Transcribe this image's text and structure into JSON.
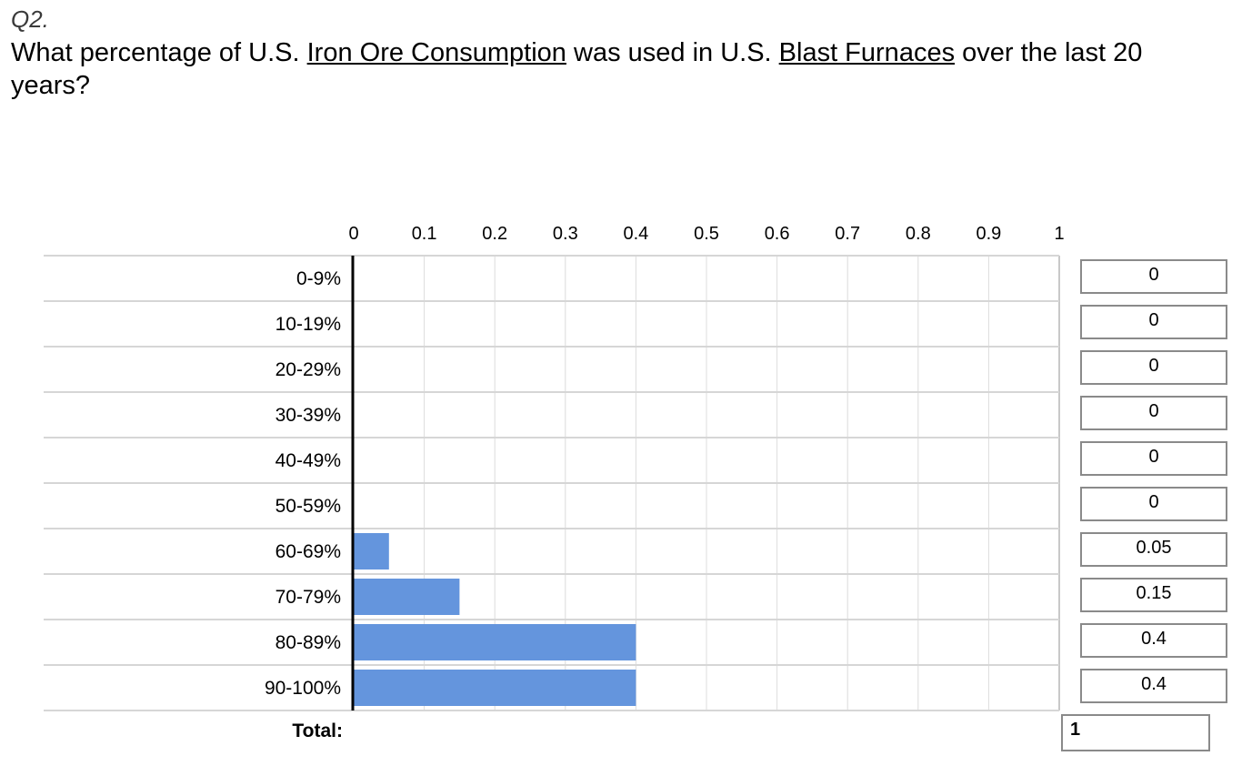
{
  "question": {
    "number": "Q2.",
    "text_before": "What percentage of U.S. ",
    "link1": "Iron Ore Consumption",
    "text_middle": " was used in U.S. ",
    "link2": "Blast Furnaces",
    "text_after": " over the last 20 years?"
  },
  "chart_data": {
    "type": "bar",
    "orientation": "horizontal",
    "categories": [
      "0-9%",
      "10-19%",
      "20-29%",
      "30-39%",
      "40-49%",
      "50-59%",
      "60-69%",
      "70-79%",
      "80-89%",
      "90-100%"
    ],
    "values": [
      0,
      0,
      0,
      0,
      0,
      0,
      0.05,
      0.15,
      0.4,
      0.4
    ],
    "value_labels": [
      "0",
      "0",
      "0",
      "0",
      "0",
      "0",
      "0.05",
      "0.15",
      "0.4",
      "0.4"
    ],
    "xlim": [
      0,
      1
    ],
    "x_ticks": [
      "0",
      "0.1",
      "0.2",
      "0.3",
      "0.4",
      "0.5",
      "0.6",
      "0.7",
      "0.8",
      "0.9",
      "1"
    ],
    "x_axis_position": "top",
    "grid": true,
    "bar_color": "#6495dd"
  },
  "total": {
    "label": "Total:",
    "value": "1"
  }
}
